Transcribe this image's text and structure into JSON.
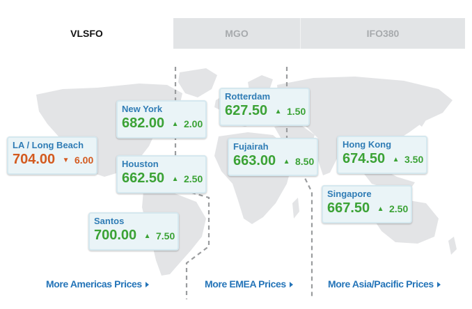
{
  "tabs": [
    {
      "label": "VLSFO",
      "active": true
    },
    {
      "label": "MGO",
      "active": false
    },
    {
      "label": "IFO380",
      "active": false
    }
  ],
  "colors": {
    "up": "#3ba235",
    "down": "#d35a1f",
    "city": "#2f7cb5",
    "link": "#2474b8"
  },
  "ports": {
    "la_long_beach": {
      "city": "LA / Long Beach",
      "price": "704.00",
      "direction": "down",
      "arrow": "▼",
      "change": "6.00"
    },
    "new_york": {
      "city": "New York",
      "price": "682.00",
      "direction": "up",
      "arrow": "▲",
      "change": "2.00"
    },
    "houston": {
      "city": "Houston",
      "price": "662.50",
      "direction": "up",
      "arrow": "▲",
      "change": "2.50"
    },
    "santos": {
      "city": "Santos",
      "price": "700.00",
      "direction": "up",
      "arrow": "▲",
      "change": "7.50"
    },
    "rotterdam": {
      "city": "Rotterdam",
      "price": "627.50",
      "direction": "up",
      "arrow": "▲",
      "change": "1.50"
    },
    "fujairah": {
      "city": "Fujairah",
      "price": "663.00",
      "direction": "up",
      "arrow": "▲",
      "change": "8.50"
    },
    "hong_kong": {
      "city": "Hong Kong",
      "price": "674.50",
      "direction": "up",
      "arrow": "▲",
      "change": "3.50"
    },
    "singapore": {
      "city": "Singapore",
      "price": "667.50",
      "direction": "up",
      "arrow": "▲",
      "change": "2.50"
    }
  },
  "links": {
    "americas": "More Americas Prices",
    "emea": "More EMEA Prices",
    "asia": "More Asia/Pacific Prices"
  }
}
